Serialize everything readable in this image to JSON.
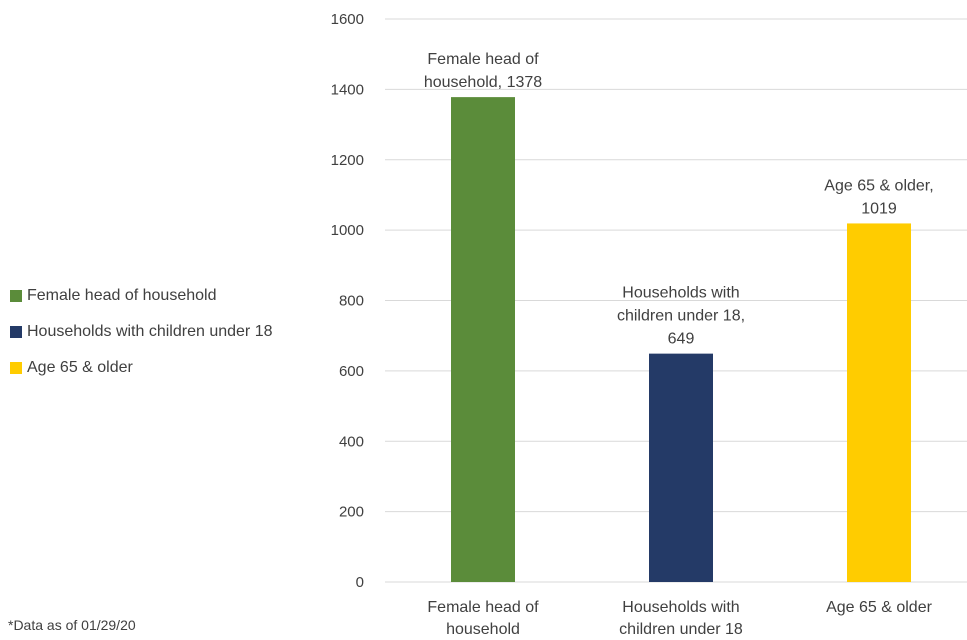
{
  "chart_data": {
    "type": "bar",
    "categories": [
      "Female head of household",
      "Households with children under 18",
      "Age 65 & older"
    ],
    "category_label_lines": [
      [
        "Female head of",
        "household"
      ],
      [
        "Households with",
        "children under 18"
      ],
      [
        "Age 65 & older"
      ]
    ],
    "values": [
      1378,
      649,
      1019
    ],
    "data_label_lines": [
      [
        "Female head of",
        "household, 1378"
      ],
      [
        "Households with",
        "children under 18,",
        "649"
      ],
      [
        "Age 65 & older,",
        "1019"
      ]
    ],
    "colors": [
      "#5b8c3a",
      "#243a67",
      "#ffcc00"
    ],
    "ylim": [
      0,
      1600
    ],
    "yticks": [
      0,
      200,
      400,
      600,
      800,
      1000,
      1200,
      1400,
      1600
    ],
    "grid": true,
    "legend_position": "left"
  },
  "legend": {
    "items": [
      {
        "label": "Female head of household",
        "color": "#5b8c3a"
      },
      {
        "label": "Households with children under 18",
        "color": "#243a67"
      },
      {
        "label": "Age 65 & older",
        "color": "#ffcc00"
      }
    ]
  },
  "footnote": "*Data as of 01/29/20"
}
